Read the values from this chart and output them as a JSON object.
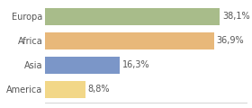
{
  "categories": [
    "America",
    "Asia",
    "Africa",
    "Europa"
  ],
  "values": [
    8.8,
    16.3,
    36.9,
    38.1
  ],
  "labels": [
    "8,8%",
    "16,3%",
    "36,9%",
    "38,1%"
  ],
  "bar_colors": [
    "#f2d788",
    "#7b96c8",
    "#e8b87a",
    "#a8bc8a"
  ],
  "background_color": "#ffffff",
  "xlim": [
    0,
    44
  ],
  "label_fontsize": 7.0,
  "tick_fontsize": 7.0,
  "bar_height": 0.72
}
